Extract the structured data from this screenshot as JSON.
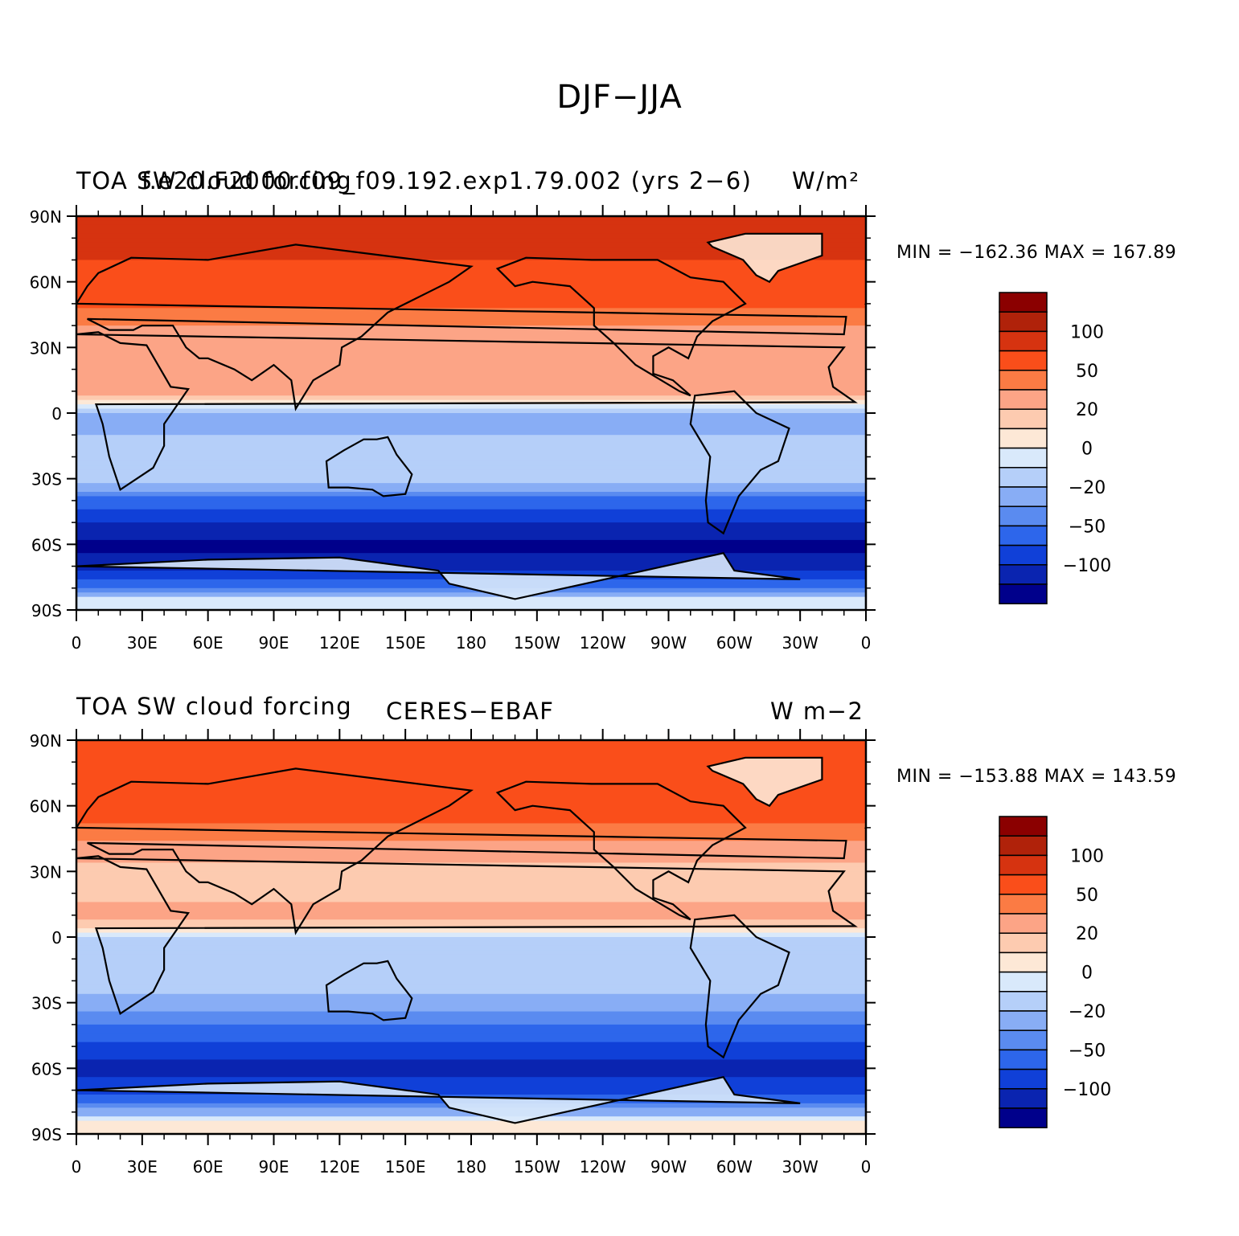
{
  "figure": {
    "main_title": "DJF−JJA"
  },
  "panels": [
    {
      "left_title": "TOA SW cloud forcing",
      "center_title": "f.e20.F2000.f09_f09.192.exp1.79.002 (yrs 2−6)",
      "units": "W/m²",
      "minmax": "MIN = −162.36  MAX = 167.89"
    },
    {
      "left_title": "TOA SW cloud forcing",
      "center_title": "CERES−EBAF",
      "units": "W m−2",
      "minmax": "MIN = −153.88  MAX = 143.59"
    }
  ],
  "axes": {
    "lat_labels": [
      "90N",
      "60N",
      "30N",
      "0",
      "30S",
      "60S",
      "90S"
    ],
    "lon_labels": [
      "0",
      "30E",
      "60E",
      "90E",
      "120E",
      "150E",
      "180",
      "150W",
      "120W",
      "90W",
      "60W",
      "30W",
      "0"
    ]
  },
  "colorbar": {
    "labels": [
      "100",
      "50",
      "20",
      "0",
      "−20",
      "−50",
      "−100"
    ],
    "colors": [
      "#8b0000",
      "#b0220a",
      "#d63310",
      "#fa4e1a",
      "#fb7b44",
      "#fca486",
      "#fdcbb0",
      "#fde8d6",
      "#d9e9fb",
      "#b5cff9",
      "#88adf5",
      "#5a8bf0",
      "#2d66eb",
      "#1040d8",
      "#0a24b0",
      "#00008b"
    ]
  },
  "chart_data": [
    {
      "type": "heatmap",
      "title": "f.e20.F2000.f09_f09.192.exp1.79.002 (yrs 2−6)",
      "variable": "TOA SW cloud forcing",
      "units": "W/m²",
      "contour_levels": [
        -125,
        -100,
        -75,
        -50,
        -35,
        -20,
        -10,
        0,
        10,
        20,
        35,
        50,
        75,
        100,
        125
      ],
      "min": -162.36,
      "max": 167.89,
      "x_range": [
        0,
        360
      ],
      "y_range": [
        -90,
        90
      ],
      "zonal_profile_lat": [
        80,
        60,
        40,
        20,
        10,
        0,
        -10,
        -20,
        -30,
        -40,
        -50,
        -60,
        -75,
        -85
      ],
      "zonal_profile_value": [
        80,
        70,
        35,
        20,
        25,
        -25,
        -20,
        -10,
        -15,
        -55,
        -100,
        -135,
        -90,
        -10
      ]
    },
    {
      "type": "heatmap",
      "title": "CERES−EBAF",
      "variable": "TOA SW cloud forcing",
      "units": "W m−2",
      "contour_levels": [
        -125,
        -100,
        -75,
        -50,
        -35,
        -20,
        -10,
        0,
        10,
        20,
        35,
        50,
        75,
        100,
        125
      ],
      "min": -153.88,
      "max": 143.59,
      "x_range": [
        0,
        360
      ],
      "y_range": [
        -90,
        90
      ],
      "zonal_profile_lat": [
        80,
        60,
        40,
        20,
        10,
        0,
        -10,
        -20,
        -30,
        -40,
        -50,
        -60,
        -75,
        -85
      ],
      "zonal_profile_value": [
        60,
        65,
        25,
        10,
        30,
        -10,
        -20,
        -15,
        -25,
        -50,
        -80,
        -120,
        -60,
        5
      ]
    }
  ]
}
